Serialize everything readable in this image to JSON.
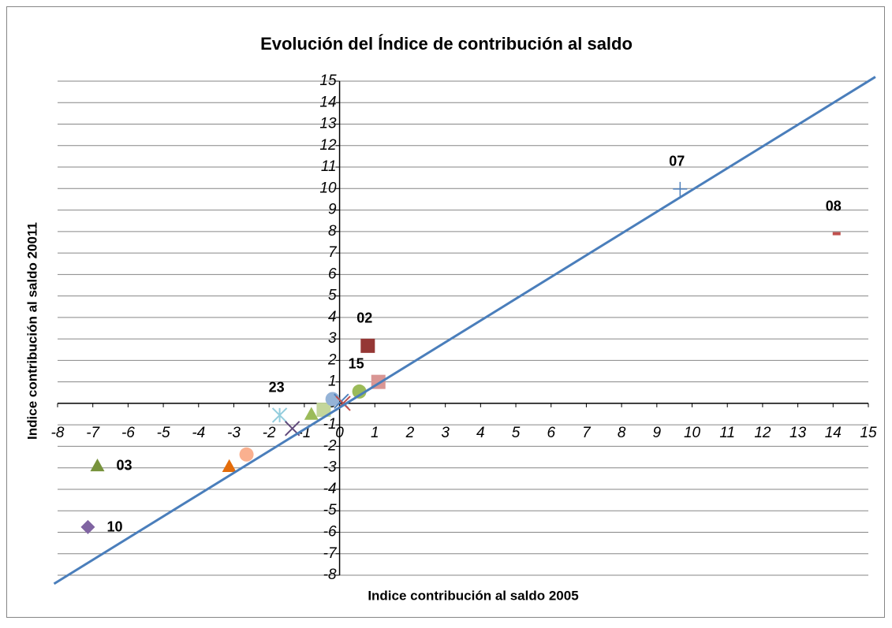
{
  "chart_data": {
    "type": "scatter",
    "title": "Evolución del Índice de contribución al saldo",
    "x_label": "Indice contribución al saldo 2005",
    "y_label": "Indice contribución al saldo 20011",
    "xlim": [
      -8,
      15
    ],
    "ylim": [
      -8,
      15
    ],
    "xticks": [
      -8,
      -7,
      -6,
      -5,
      -4,
      -3,
      -2,
      -1,
      0,
      1,
      2,
      3,
      4,
      5,
      6,
      7,
      8,
      9,
      10,
      11,
      12,
      13,
      14,
      15
    ],
    "yticks": [
      -8,
      -7,
      -6,
      -5,
      -4,
      -3,
      -2,
      -1,
      0,
      1,
      2,
      3,
      4,
      5,
      6,
      7,
      8,
      9,
      10,
      11,
      12,
      13,
      14,
      15
    ],
    "grid": true,
    "series": [
      {
        "name": "10",
        "marker": "diamond",
        "color": "#8064a2",
        "x": [
          -7.14
        ],
        "values": [
          -5.76
        ]
      },
      {
        "name": "03",
        "marker": "triangle",
        "color": "#77933c",
        "x": [
          -6.87
        ],
        "values": [
          -2.9
        ]
      },
      {
        "marker": "triangle",
        "color": "#e46c0a",
        "x": [
          -3.13
        ],
        "values": [
          -2.93
        ]
      },
      {
        "marker": "circle",
        "color": "#fab08f",
        "x": [
          -2.64
        ],
        "values": [
          -2.38
        ]
      },
      {
        "name": "23",
        "marker": "star",
        "color": "#93cddd",
        "x": [
          -1.7
        ],
        "values": [
          -0.55
        ]
      },
      {
        "marker": "x",
        "color": "#604a7b",
        "x": [
          -1.34
        ],
        "values": [
          -1.17
        ]
      },
      {
        "marker": "triangle",
        "color": "#9bbb59",
        "x": [
          -0.8
        ],
        "values": [
          -0.5
        ]
      },
      {
        "marker": "square",
        "color": "#c3d69b",
        "x": [
          -0.45
        ],
        "values": [
          -0.3
        ]
      },
      {
        "marker": "circle",
        "color": "#95b3d7",
        "x": [
          -0.2
        ],
        "values": [
          0.2
        ]
      },
      {
        "marker": "x",
        "color": "#4f81bd",
        "x": [
          0.05
        ],
        "values": [
          0.1
        ]
      },
      {
        "marker": "x",
        "color": "#c0504d",
        "x": [
          0.1
        ],
        "values": [
          0
        ]
      },
      {
        "name": "15",
        "marker": "circle",
        "color": "#9bbb59",
        "x": [
          0.56
        ],
        "values": [
          0.55
        ]
      },
      {
        "marker": "square",
        "color": "#d99694",
        "x": [
          1.1
        ],
        "values": [
          1.0
        ]
      },
      {
        "name": "02",
        "marker": "square",
        "color": "#953735",
        "x": [
          0.8
        ],
        "values": [
          2.68
        ]
      },
      {
        "name": "07",
        "marker": "plus",
        "color": "#4f81bd",
        "x": [
          9.66
        ],
        "values": [
          9.98
        ]
      },
      {
        "name": "08",
        "marker": "dash",
        "color": "#c0504d",
        "x": [
          14.1
        ],
        "values": [
          7.9
        ]
      },
      {
        "marker": "line",
        "color": "#4a7ebb",
        "x": [
          -8.1,
          15.2
        ],
        "values": [
          -8.4,
          15.2
        ]
      }
    ]
  }
}
